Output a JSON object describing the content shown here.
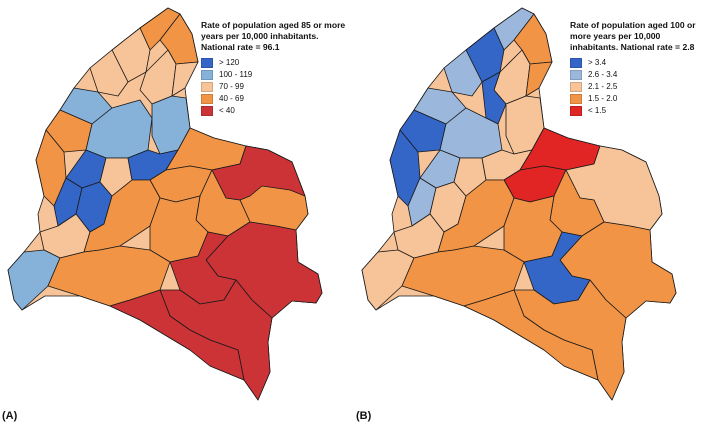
{
  "maps": [
    {
      "label": "(A)",
      "legend_title": "Rate of population aged 85 or more years per 10,000 inhabitants. National rate = 96.1",
      "classes": [
        {
          "label": "> 120",
          "color": "#3366c7"
        },
        {
          "label": "100 - 119",
          "color": "#86b1d8"
        },
        {
          "label": "70 - 99",
          "color": "#f7c398"
        },
        {
          "label": "40 - 69",
          "color": "#f19446"
        },
        {
          "label": "< 40",
          "color": "#cb3336"
        }
      ]
    },
    {
      "label": "(B)",
      "legend_title": "Rate of population aged 100 or more years per 10,000 inhabitants. National rate = 2.8",
      "classes": [
        {
          "label": "> 3.4",
          "color": "#3366c7"
        },
        {
          "label": "2.6 - 3.4",
          "color": "#9bb8dc"
        },
        {
          "label": "2.1 - 2.5",
          "color": "#f7c398"
        },
        {
          "label": "1.5 - 2.0",
          "color": "#f19446"
        },
        {
          "label": "< 1.5",
          "color": "#e12424"
        }
      ]
    }
  ]
}
